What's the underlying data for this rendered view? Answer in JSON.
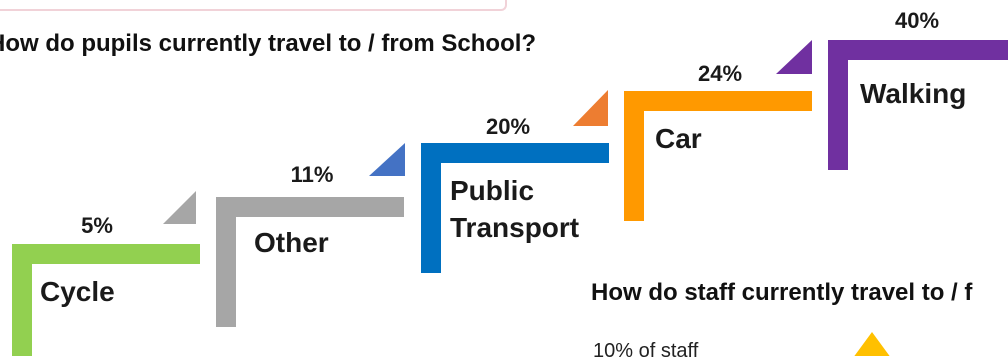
{
  "chart_data": {
    "type": "bar",
    "title": "How do pupils currently travel to / from School?",
    "categories": [
      "Cycle",
      "Other",
      "Public Transport",
      "Car",
      "Walking"
    ],
    "category_lines": [
      [
        "Cycle"
      ],
      [
        "Other"
      ],
      [
        "Public",
        "Transport"
      ],
      [
        "Car"
      ],
      [
        "Walking"
      ]
    ],
    "values": [
      5,
      11,
      20,
      24,
      40
    ],
    "value_labels": [
      "5%",
      "11%",
      "20%",
      "24%",
      "40%"
    ],
    "colors": {
      "Cycle": "#92d050",
      "Other": "#a6a6a6",
      "Public Transport": "#0070c0",
      "Car": "#ff9900",
      "Walking": "#7030a0"
    },
    "arrow_colors": [
      "#a6a6a6",
      "#4472c4",
      "#ed7d31",
      "#7030a0"
    ]
  },
  "second_question": "How do staff currently travel to / f",
  "staff_note": "10% of staff",
  "staff_arrow_color": "#ffc000"
}
